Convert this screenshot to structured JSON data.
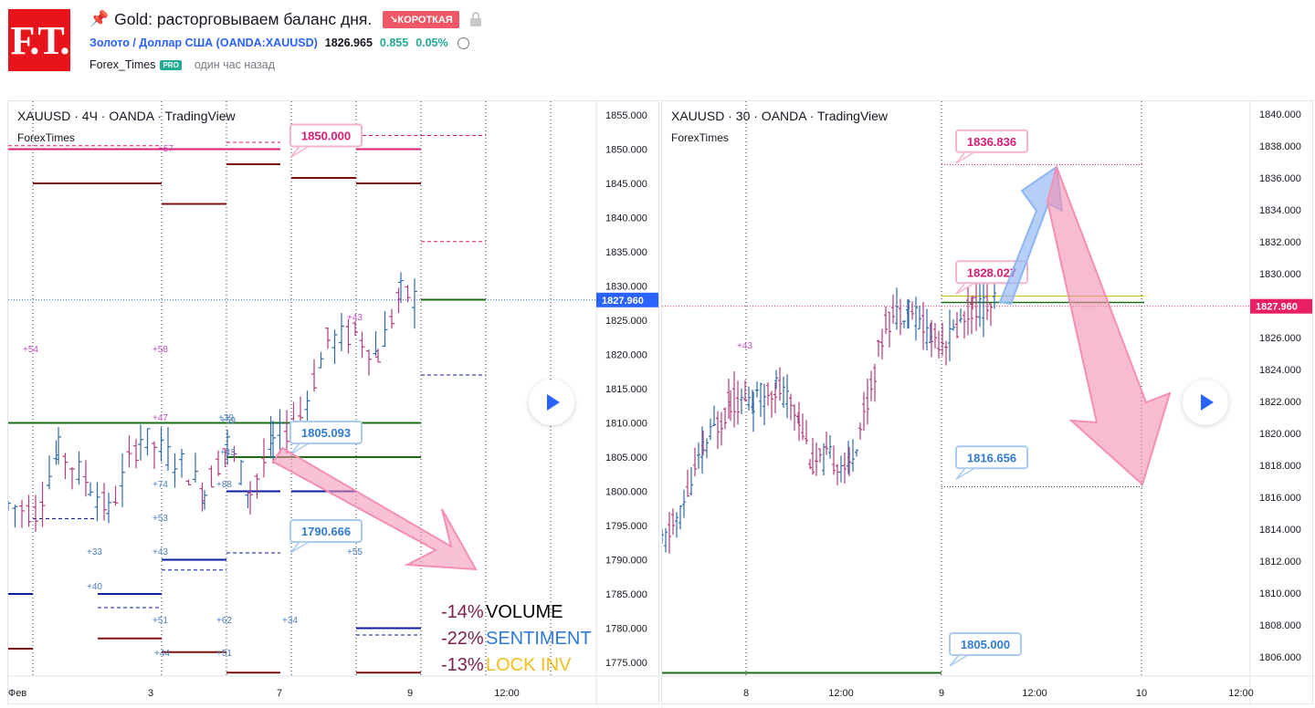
{
  "header": {
    "logo_text": "F.T.",
    "pin_icon": "pin-icon",
    "title": "Gold: расторговываем баланс дня.",
    "badge": "↘КОРОТКАЯ",
    "symbol": "Золото / Доллар США (OANDA:XAUUSD)",
    "price": "1826.965",
    "change": "0.855",
    "change_pct": "0.05%",
    "author": "Forex_Times",
    "pro_badge": "PRO",
    "time_ago": "один час назад"
  },
  "colors": {
    "up": "#2962ff",
    "green": "#22ab94",
    "short": "#ef5766",
    "magenta": "#d81b74",
    "blue_line": "#0d1b9c",
    "dark_red": "#7b1010",
    "dark_green": "#1b6b15"
  },
  "chart_data": [
    {
      "type": "candlestick",
      "title": "XAUUSD · 4Ч · OANDA · TradingView",
      "author": "ForexTimes",
      "y_ticks": [
        "1855.000",
        "1850.000",
        "1845.000",
        "1840.000",
        "1835.000",
        "1830.000",
        "1825.000",
        "1820.000",
        "1815.000",
        "1810.000",
        "1805.000",
        "1800.000",
        "1795.000",
        "1790.000",
        "1785.000",
        "1780.000",
        "1775.000"
      ],
      "ylim": [
        1773,
        1857
      ],
      "x_ticks": [
        "Фев",
        "3",
        "7",
        "9",
        "12:00"
      ],
      "last_price": "1827.960",
      "last_price_value": 1827.96,
      "annotations": [
        {
          "label": "1850.000",
          "value": 1850.0,
          "color": "magenta"
        },
        {
          "label": "1805.093",
          "value": 1805.093,
          "color": "blue"
        },
        {
          "label": "1790.666",
          "value": 1790.666,
          "color": "blue"
        }
      ],
      "level_labels": [
        "+57",
        "+54",
        "+58",
        "+47",
        "+39",
        "+43",
        "+74",
        "+53",
        "+33",
        "+43",
        "+40",
        "+88",
        "+59",
        "+55",
        "+51",
        "+62",
        "+34",
        "+44",
        "+51",
        "+43"
      ],
      "volume_panel": [
        {
          "pct": "-14%",
          "name": "VOLUME",
          "name_color": "#000000"
        },
        {
          "pct": "-22%",
          "name": "SENTIMENT",
          "name_color": "#2f7bd6"
        },
        {
          "pct": "-13%",
          "name": "LOCK INV",
          "name_color": "#f2bd1d"
        }
      ],
      "levels": [
        {
          "y": 1850.0,
          "color": "magenta"
        },
        {
          "y": 1845.0,
          "color": "dark_red"
        },
        {
          "y": 1842.0,
          "color": "dark_red"
        },
        {
          "y": 1847.8,
          "color": "dark_red"
        },
        {
          "y": 1845.8,
          "color": "dark_red"
        },
        {
          "y": 1810.0,
          "color": "dark_green"
        },
        {
          "y": 1805.0,
          "color": "dark_green"
        },
        {
          "y": 1828.0,
          "color": "dark_green"
        },
        {
          "y": 1800.0,
          "color": "blue_line"
        },
        {
          "y": 1790.0,
          "color": "blue_line"
        },
        {
          "y": 1785.0,
          "color": "blue_line"
        },
        {
          "y": 1780.0,
          "color": "blue_line"
        },
        {
          "y": 1777.0,
          "color": "dark_red"
        },
        {
          "y": 1778.5,
          "color": "dark_red"
        },
        {
          "y": 1776.5,
          "color": "dark_red"
        },
        {
          "y": 1773.5,
          "color": "dark_red"
        }
      ]
    },
    {
      "type": "candlestick",
      "title": "XAUUSD · 30 · OANDA · TradingView",
      "author": "ForexTimes",
      "y_ticks": [
        "1840.000",
        "1838.000",
        "1836.000",
        "1834.000",
        "1832.000",
        "1830.000",
        "1828.000",
        "1826.000",
        "1824.000",
        "1822.000",
        "1820.000",
        "1818.000",
        "1816.000",
        "1814.000",
        "1812.000",
        "1810.000",
        "1808.000",
        "1806.000"
      ],
      "ylim": [
        1804.8,
        1840.8
      ],
      "x_ticks": [
        "8",
        "12:00",
        "9",
        "12:00",
        "10",
        "12:00"
      ],
      "last_price": "1827.960",
      "last_price_value": 1827.96,
      "annotations": [
        {
          "label": "1836.836",
          "value": 1836.836,
          "color": "magenta"
        },
        {
          "label": "1828.027",
          "value": 1828.027,
          "color": "magenta"
        },
        {
          "label": "1816.656",
          "value": 1816.656,
          "color": "blue"
        },
        {
          "label": "1805.000",
          "value": 1805.0,
          "color": "blue"
        }
      ],
      "level_labels": [
        "+43"
      ]
    }
  ]
}
